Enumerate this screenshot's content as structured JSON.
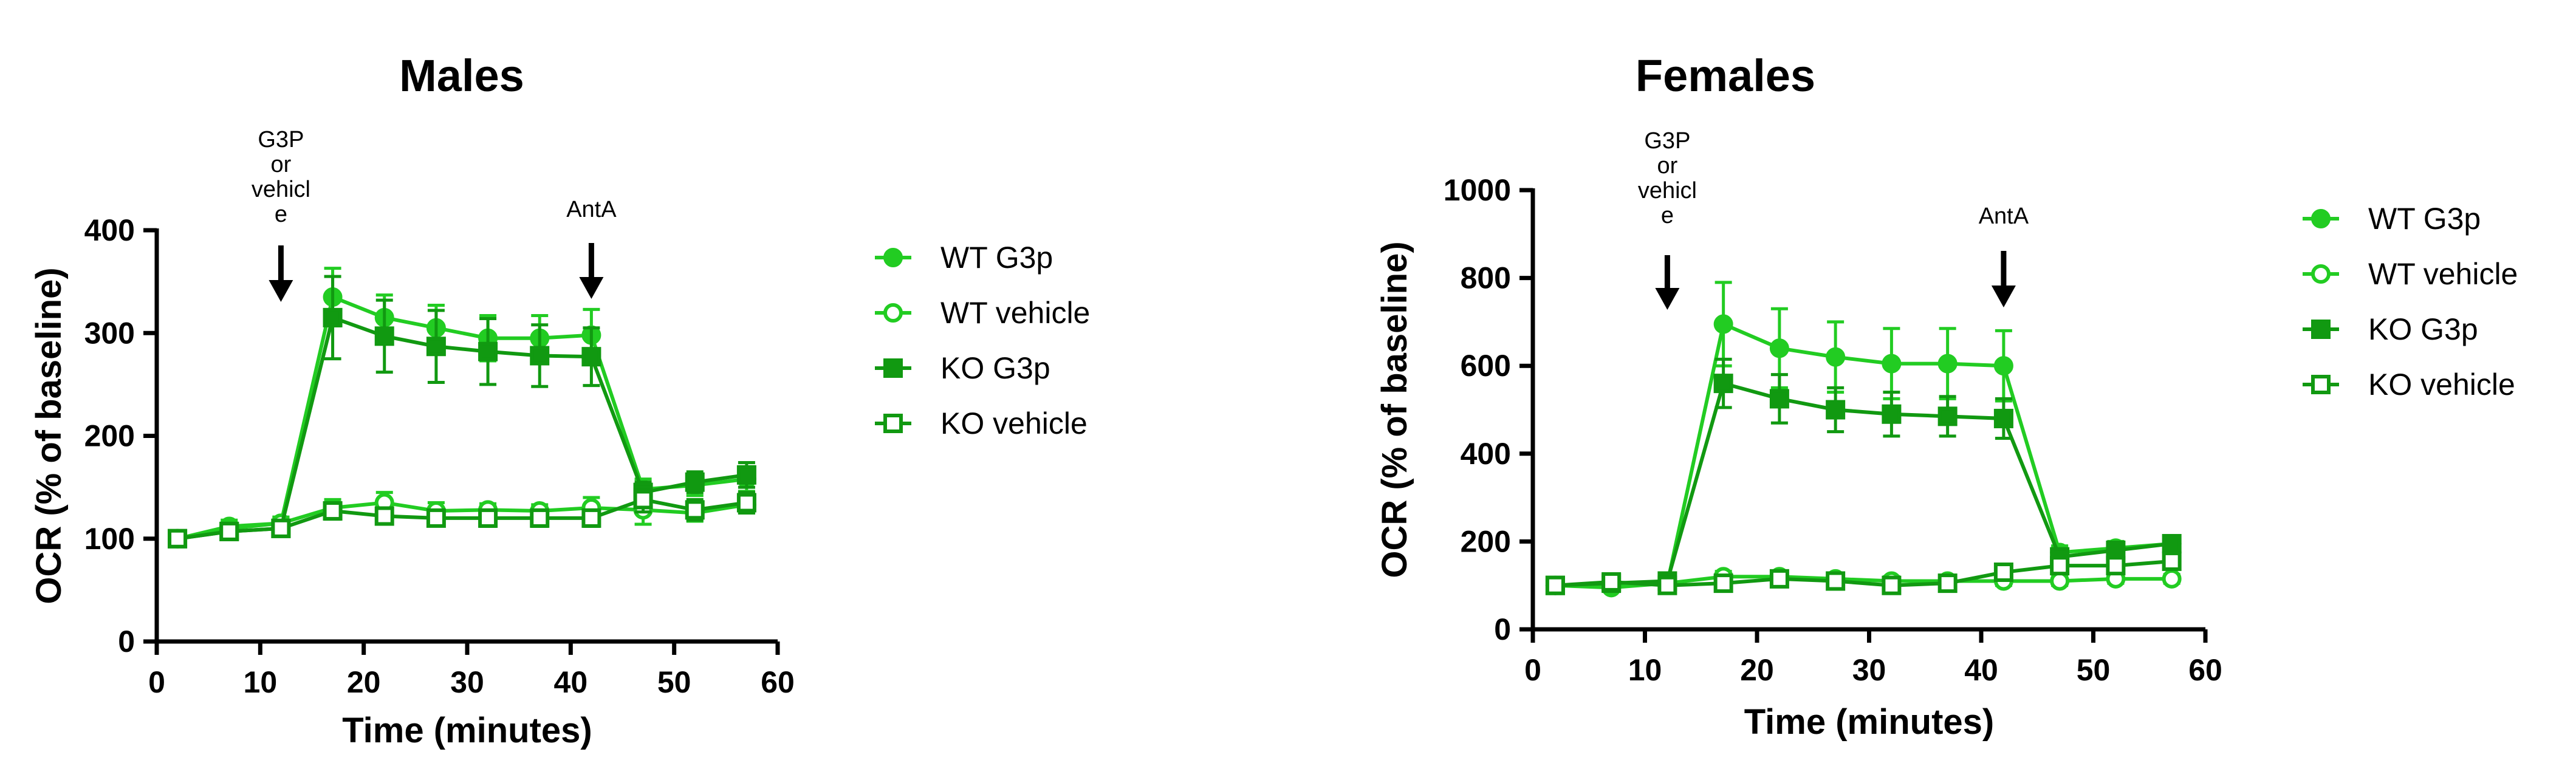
{
  "colors": {
    "wt": "#22cc22",
    "ko": "#119911",
    "axis": "#000000",
    "background": "#ffffff"
  },
  "chart_data": [
    {
      "id": "males",
      "type": "line",
      "title": "Males",
      "xlabel": "Time (minutes)",
      "ylabel": "OCR (% of baseline)",
      "xlim": [
        0,
        60
      ],
      "ylim": [
        0,
        400
      ],
      "xticks": [
        0,
        10,
        20,
        30,
        40,
        50,
        60
      ],
      "yticks": [
        0,
        100,
        200,
        300,
        400
      ],
      "grid": false,
      "legend_position": "right",
      "annotations": [
        {
          "text_lines": [
            "G3P",
            "or",
            "vehicl",
            "e"
          ],
          "x": 12
        },
        {
          "text_lines": [
            "AntA"
          ],
          "x": 42
        }
      ],
      "x": [
        2,
        7,
        12,
        17,
        22,
        27,
        32,
        37,
        42,
        47,
        52,
        57
      ],
      "series": [
        {
          "name": "WT G3p",
          "color_key": "wt",
          "marker": "circle",
          "filled": true,
          "values": [
            100,
            112,
            115,
            335,
            315,
            305,
            295,
            295,
            298,
            148,
            152,
            158
          ],
          "errors": [
            4,
            6,
            6,
            28,
            22,
            22,
            22,
            22,
            25,
            10,
            10,
            12
          ]
        },
        {
          "name": "WT vehicle",
          "color_key": "wt",
          "marker": "circle",
          "filled": false,
          "values": [
            100,
            110,
            115,
            130,
            135,
            127,
            128,
            127,
            130,
            128,
            125,
            133
          ],
          "errors": [
            4,
            5,
            6,
            8,
            10,
            8,
            6,
            6,
            10,
            14,
            8,
            8
          ]
        },
        {
          "name": "KO G3p",
          "color_key": "ko",
          "marker": "square",
          "filled": true,
          "values": [
            100,
            107,
            110,
            315,
            297,
            287,
            282,
            278,
            277,
            145,
            155,
            162
          ],
          "errors": [
            4,
            5,
            5,
            40,
            35,
            35,
            32,
            30,
            28,
            10,
            10,
            12
          ]
        },
        {
          "name": "KO vehicle",
          "color_key": "ko",
          "marker": "square",
          "filled": false,
          "values": [
            100,
            107,
            110,
            127,
            122,
            120,
            120,
            120,
            120,
            138,
            128,
            135
          ],
          "errors": [
            4,
            5,
            5,
            8,
            8,
            6,
            8,
            8,
            8,
            12,
            10,
            10
          ]
        }
      ]
    },
    {
      "id": "females",
      "type": "line",
      "title": "Females",
      "xlabel": "Time (minutes)",
      "ylabel": "OCR (% of baseline)",
      "xlim": [
        0,
        60
      ],
      "ylim": [
        0,
        1000
      ],
      "xticks": [
        0,
        10,
        20,
        30,
        40,
        50,
        60
      ],
      "yticks": [
        0,
        200,
        400,
        600,
        800,
        1000
      ],
      "grid": false,
      "legend_position": "right",
      "annotations": [
        {
          "text_lines": [
            "G3P",
            "or",
            "vehicl",
            "e"
          ],
          "x": 12
        },
        {
          "text_lines": [
            "AntA"
          ],
          "x": 42
        }
      ],
      "x": [
        2,
        7,
        12,
        17,
        22,
        27,
        32,
        37,
        42,
        47,
        52,
        57
      ],
      "series": [
        {
          "name": "WT G3p",
          "color_key": "wt",
          "marker": "circle",
          "filled": true,
          "values": [
            100,
            95,
            105,
            695,
            640,
            620,
            605,
            605,
            600,
            175,
            185,
            195
          ],
          "errors": [
            8,
            8,
            10,
            95,
            90,
            80,
            80,
            80,
            80,
            15,
            15,
            15
          ]
        },
        {
          "name": "WT vehicle",
          "color_key": "wt",
          "marker": "circle",
          "filled": false,
          "values": [
            100,
            100,
            105,
            120,
            120,
            115,
            110,
            110,
            110,
            110,
            115,
            115
          ],
          "errors": [
            8,
            8,
            8,
            12,
            10,
            10,
            10,
            10,
            10,
            10,
            10,
            10
          ]
        },
        {
          "name": "KO G3p",
          "color_key": "ko",
          "marker": "square",
          "filled": true,
          "values": [
            100,
            105,
            110,
            560,
            525,
            500,
            490,
            485,
            480,
            165,
            180,
            195
          ],
          "errors": [
            8,
            8,
            10,
            55,
            55,
            50,
            50,
            45,
            45,
            15,
            15,
            15
          ]
        },
        {
          "name": "KO vehicle",
          "color_key": "ko",
          "marker": "square",
          "filled": false,
          "values": [
            100,
            108,
            100,
            105,
            115,
            110,
            100,
            105,
            130,
            145,
            145,
            155
          ],
          "errors": [
            8,
            8,
            8,
            10,
            10,
            10,
            10,
            10,
            12,
            12,
            12,
            12
          ]
        }
      ]
    }
  ]
}
